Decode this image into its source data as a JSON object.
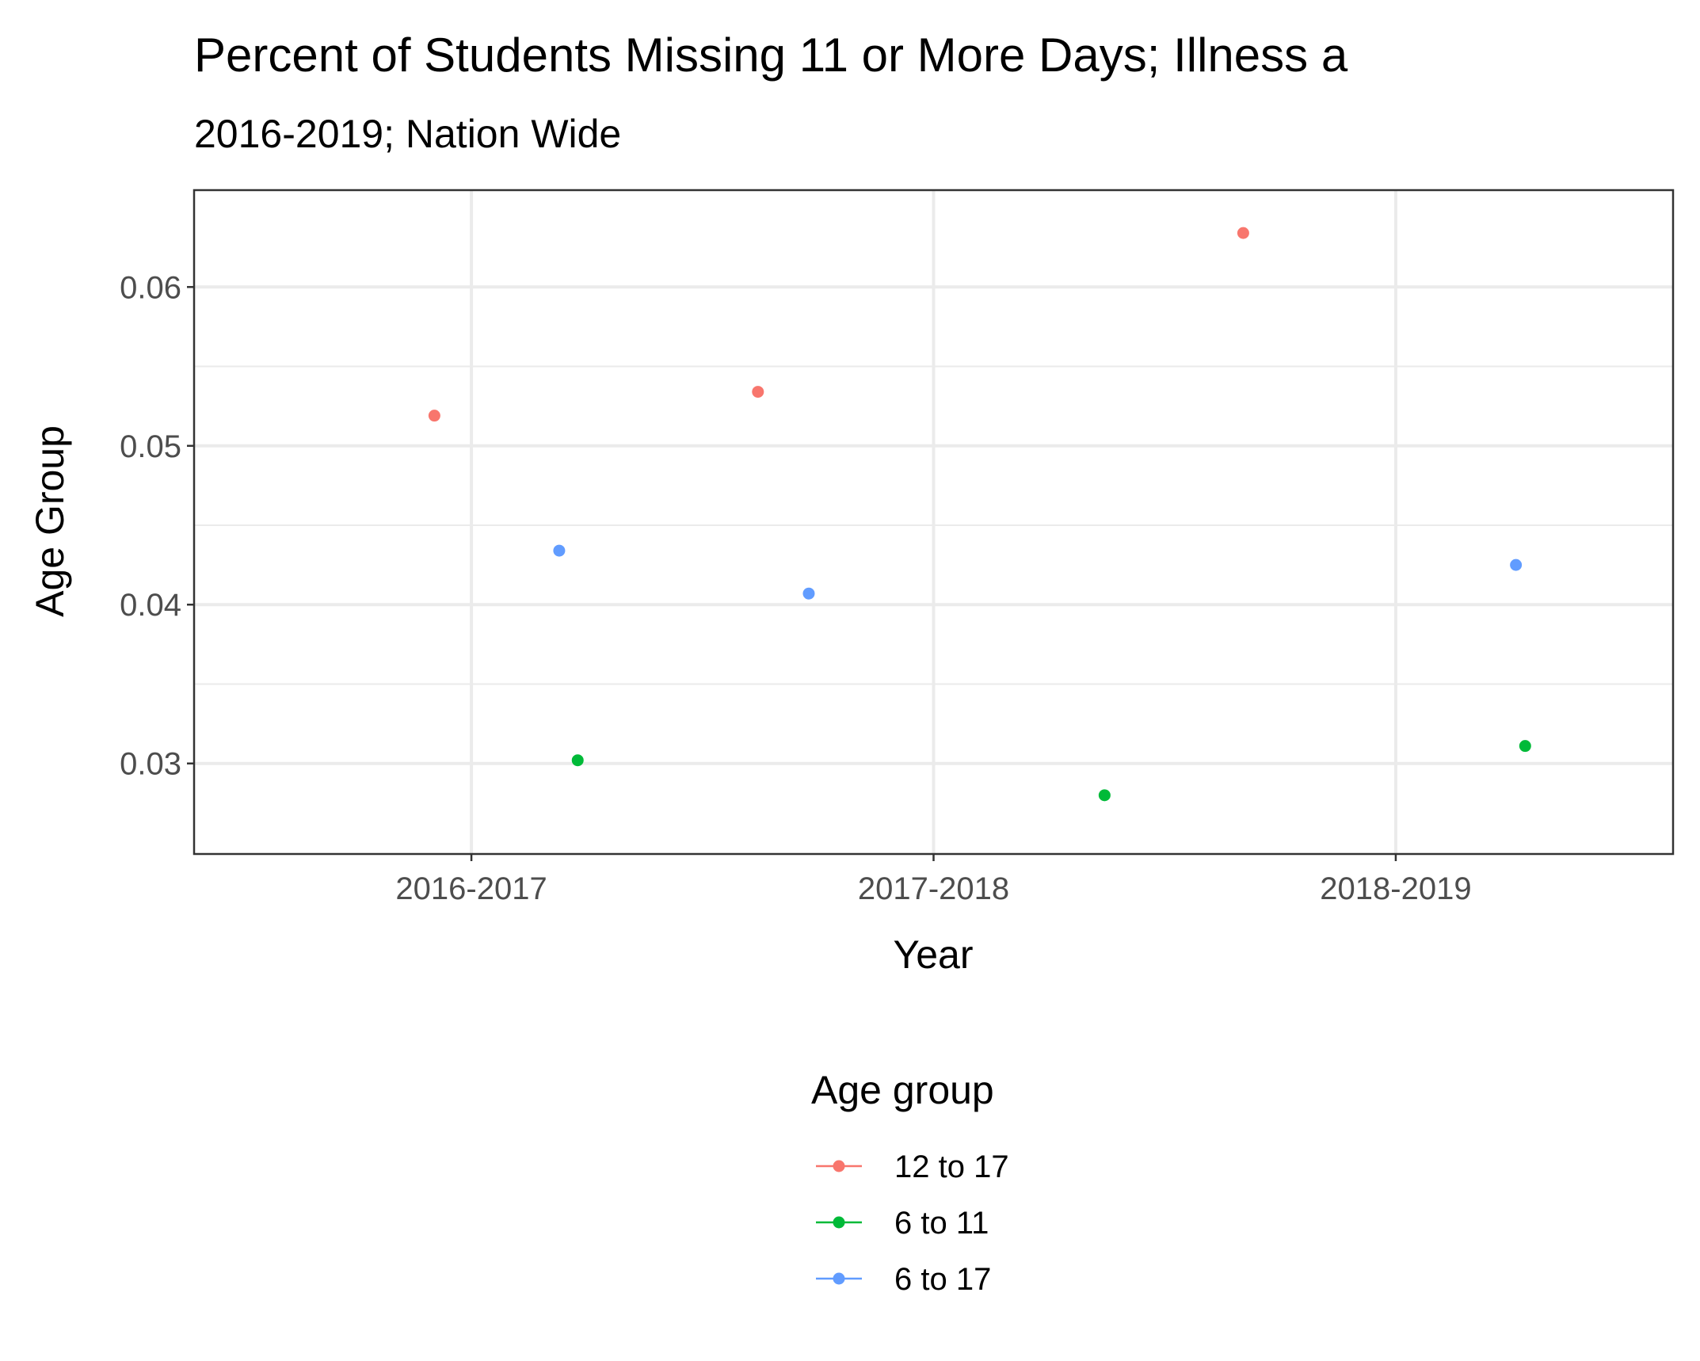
{
  "chart_data": {
    "type": "scatter",
    "title": "Percent of Students Missing 11 or More Days; Illness a",
    "subtitle": "2016-2019; Nation Wide",
    "xlabel": "Year",
    "ylabel": "Age Group",
    "categories": [
      "2016-2017",
      "2017-2018",
      "2018-2019"
    ],
    "ylim": [
      0.0243,
      0.0661
    ],
    "yticks": [
      0.03,
      0.04,
      0.05,
      0.06
    ],
    "ytick_labels": [
      "0.03",
      "0.04",
      "0.05",
      "0.06"
    ],
    "grid": true,
    "legend": {
      "title": "Age group",
      "position": "bottom"
    },
    "series": [
      {
        "name": "12 to 17",
        "color": "#F8766D",
        "points": [
          {
            "x": 0.92,
            "y": 0.0519
          },
          {
            "x": 1.62,
            "y": 0.0534
          },
          {
            "x": 2.67,
            "y": 0.0634
          }
        ]
      },
      {
        "name": "6 to 11",
        "color": "#00BA38",
        "points": [
          {
            "x": 1.23,
            "y": 0.0302
          },
          {
            "x": 2.37,
            "y": 0.028
          },
          {
            "x": 3.28,
            "y": 0.0311
          }
        ]
      },
      {
        "name": "6 to 17",
        "color": "#619CFF",
        "points": [
          {
            "x": 1.19,
            "y": 0.0434
          },
          {
            "x": 1.73,
            "y": 0.0407
          },
          {
            "x": 3.26,
            "y": 0.0425
          }
        ]
      }
    ]
  }
}
